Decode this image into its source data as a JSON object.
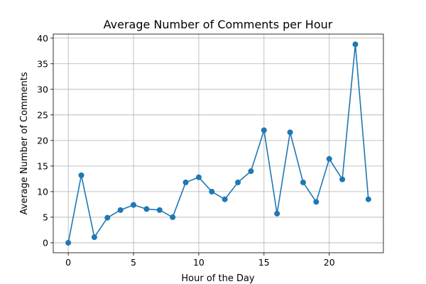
{
  "chart_data": {
    "type": "line",
    "title": "Average Number of Comments per Hour",
    "xlabel": "Hour of the Day",
    "ylabel": "Average Number of Comments",
    "x": [
      0,
      1,
      2,
      3,
      4,
      5,
      6,
      7,
      8,
      9,
      10,
      11,
      12,
      13,
      14,
      15,
      16,
      17,
      18,
      19,
      20,
      21,
      22,
      23
    ],
    "series": [
      {
        "values": [
          0.0,
          13.2,
          1.1,
          4.9,
          6.4,
          7.4,
          6.6,
          6.4,
          5.0,
          11.8,
          12.8,
          10.0,
          8.5,
          11.8,
          14.0,
          22.0,
          5.7,
          21.6,
          11.8,
          8.0,
          16.4,
          12.4,
          38.8,
          8.5
        ]
      }
    ],
    "xlim": [
      -1.15,
      24.15
    ],
    "ylim": [
      -1.95,
      40.8
    ],
    "xticks": [
      0,
      5,
      10,
      15,
      20
    ],
    "yticks": [
      0,
      5,
      10,
      15,
      20,
      25,
      30,
      35,
      40
    ],
    "grid": true,
    "marker": "circle",
    "color": "#1f77b4"
  }
}
